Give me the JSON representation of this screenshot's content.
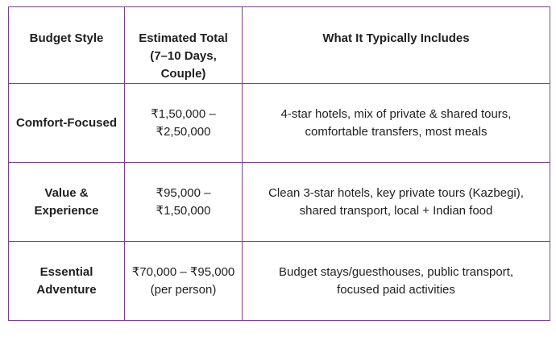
{
  "table": {
    "headers": [
      "Budget Style",
      "Estimated Total (7–10 Days, Couple)",
      "What It Typically Includes"
    ],
    "rows": [
      {
        "style": "Comfort-Focused",
        "total": "₹1,50,000 – ₹2,50,000",
        "includes": "4-star hotels, mix of private & shared tours, comfortable transfers, most meals"
      },
      {
        "style": "Value & Experience",
        "total": "₹95,000 – ₹1,50,000",
        "includes": "Clean 3-star hotels, key private tours (Kazbegi), shared transport, local + Indian food"
      },
      {
        "style": "Essential Adventure",
        "total": "₹70,000 – ₹95,000 (per person)",
        "includes": "Budget stays/guesthouses, public transport, focused paid activities"
      }
    ]
  },
  "colors": {
    "border": "#7b3f8f",
    "text": "#1f1f1f",
    "background": "#ffffff"
  }
}
